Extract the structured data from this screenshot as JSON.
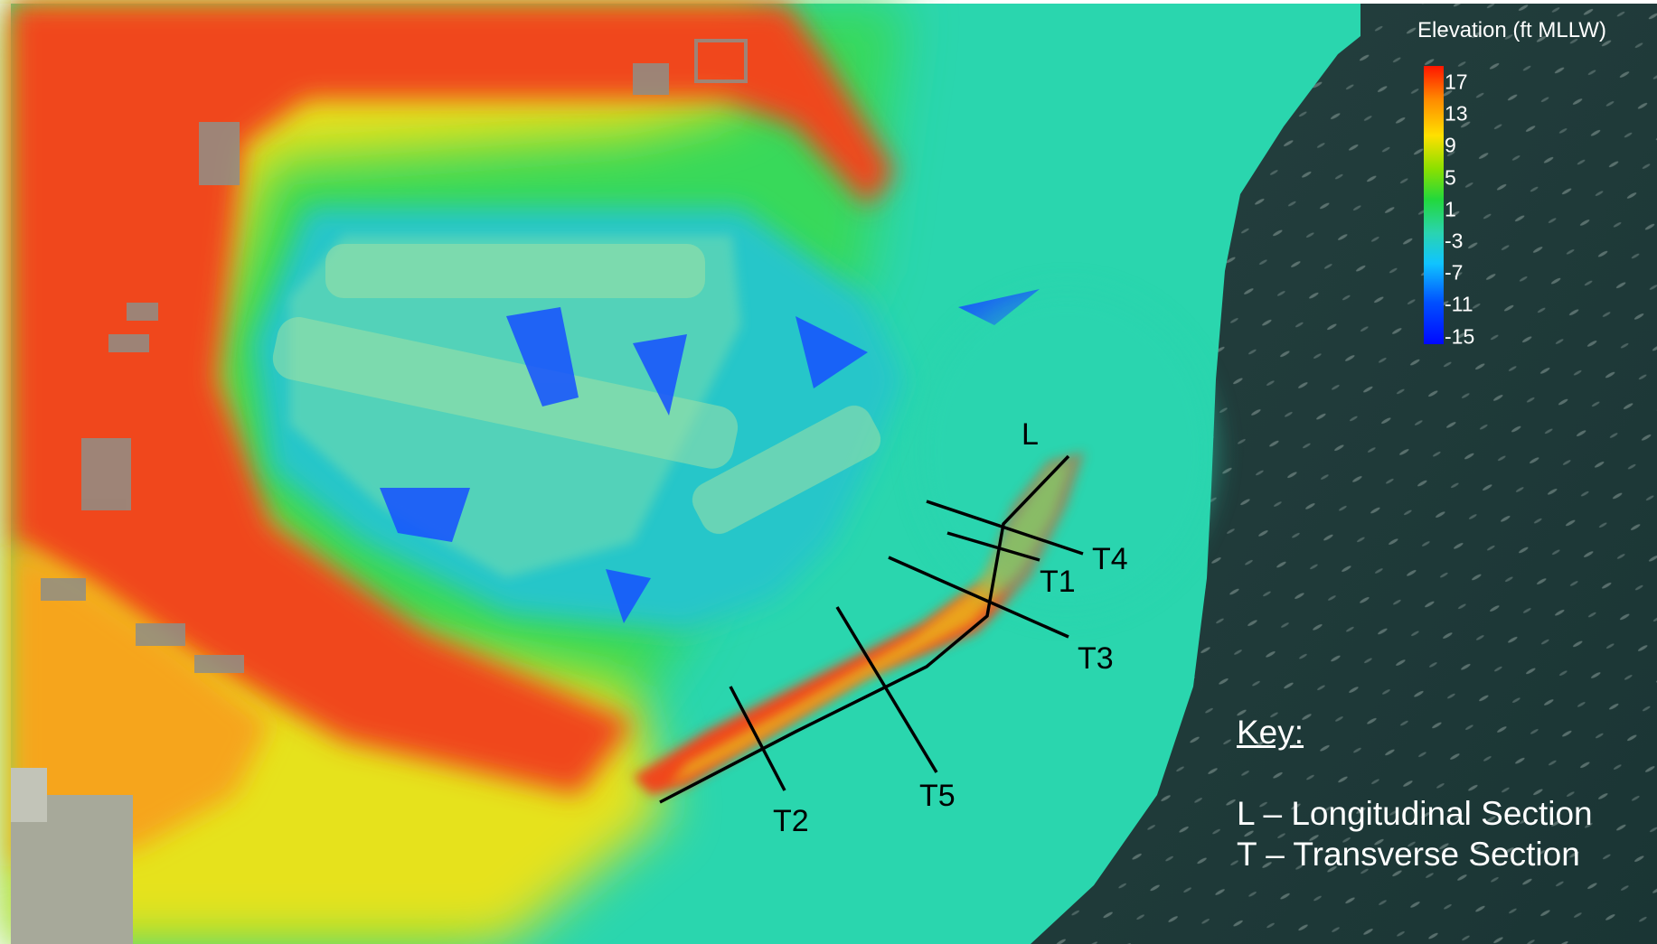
{
  "legend": {
    "title": "Elevation (ft MLLW)",
    "ticks": [
      "17",
      "13",
      "9",
      "5",
      "1",
      "-3",
      "-7",
      "-11",
      "-15"
    ]
  },
  "sections": {
    "L": "L",
    "T1": "T1",
    "T2": "T2",
    "T3": "T3",
    "T4": "T4",
    "T5": "T5"
  },
  "key": {
    "title": "Key:",
    "line_L": "L – Longitudinal Section",
    "line_T": "T – Transverse Section"
  },
  "colors": {
    "high_land": "#f0431d",
    "water_dark": "#1f3a3a",
    "shallow_water": "#2ad4b0",
    "deep": "#0008ff",
    "section_line": "#000000"
  }
}
